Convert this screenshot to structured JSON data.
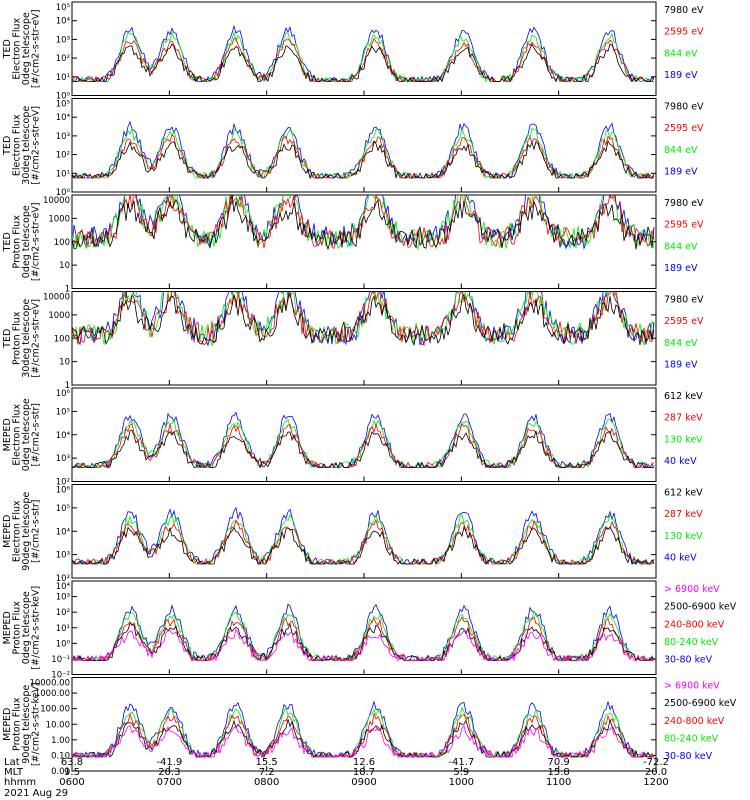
{
  "footer": {
    "row_labels": [
      "Lat",
      "MLT",
      "hhmm"
    ],
    "columns": [
      {
        "lat": "63.8",
        "mlt": "9.5",
        "hhmm": "0600"
      },
      {
        "lat": "-41.9",
        "mlt": "20.3",
        "hhmm": "0700"
      },
      {
        "lat": "15.5",
        "mlt": "7.2",
        "hhmm": "0800"
      },
      {
        "lat": "12.6",
        "mlt": "18.7",
        "hhmm": "0900"
      },
      {
        "lat": "-41.7",
        "mlt": "5.9",
        "hhmm": "1000"
      },
      {
        "lat": "70.9",
        "mlt": "15.8",
        "hhmm": "1100"
      },
      {
        "lat": "-72.2",
        "mlt": "20.0",
        "hhmm": "1200"
      }
    ],
    "date": "2021 Aug 29"
  },
  "colors": {
    "black": "#000000",
    "red": "#ff0000",
    "green": "#00ee00",
    "blue": "#0000ff",
    "magenta": "#ff00ff"
  },
  "chart_data": [
    {
      "type": "line",
      "ylabel": [
        "TED",
        "Electron Flux",
        "0deg telescope",
        "[#/cm2-s-str-eV]"
      ],
      "yscale": "log",
      "yticks": [
        "10⁰",
        "10¹",
        "10²",
        "10³",
        "10⁴",
        "10⁵"
      ],
      "ylim_exp": [
        0,
        5
      ],
      "legend": [
        {
          "label": "7980 eV",
          "color": "#000000"
        },
        {
          "label": "2595 eV",
          "color": "#ff0000"
        },
        {
          "label": "844 eV",
          "color": "#00ee00"
        },
        {
          "label": "189 eV",
          "color": "#0000ff"
        }
      ]
    },
    {
      "type": "line",
      "ylabel": [
        "TED",
        "Electron Flux",
        "30deg telescope",
        "[#/cm2-s-str-eV]"
      ],
      "yscale": "log",
      "yticks": [
        "10⁰",
        "10¹",
        "10²",
        "10³",
        "10⁴",
        "10⁵"
      ],
      "ylim_exp": [
        0,
        5
      ],
      "legend": [
        {
          "label": "7980 eV",
          "color": "#000000"
        },
        {
          "label": "2595 eV",
          "color": "#ff0000"
        },
        {
          "label": "844 eV",
          "color": "#00ee00"
        },
        {
          "label": "189 eV",
          "color": "#0000ff"
        }
      ]
    },
    {
      "type": "line",
      "ylabel": [
        "TED",
        "Proton Flux",
        "0deg telescope",
        "[#/cm2-s-str-eV]"
      ],
      "yscale": "log",
      "yticks": [
        "1",
        "10",
        "100",
        "1000",
        "10000"
      ],
      "ylim_exp": [
        0,
        4
      ],
      "legend": [
        {
          "label": "7980 eV",
          "color": "#000000"
        },
        {
          "label": "2595 eV",
          "color": "#ff0000"
        },
        {
          "label": "844 eV",
          "color": "#00ee00"
        },
        {
          "label": "189 eV",
          "color": "#0000ff"
        }
      ]
    },
    {
      "type": "line",
      "ylabel": [
        "TED",
        "Proton Flux",
        "30deg telescope",
        "[#/cm2-s-str-eV]"
      ],
      "yscale": "log",
      "yticks": [
        "1",
        "10",
        "100",
        "1000",
        "10000"
      ],
      "ylim_exp": [
        0,
        4
      ],
      "legend": [
        {
          "label": "7980 eV",
          "color": "#000000"
        },
        {
          "label": "2595 eV",
          "color": "#ff0000"
        },
        {
          "label": "844 eV",
          "color": "#00ee00"
        },
        {
          "label": "189 eV",
          "color": "#0000ff"
        }
      ]
    },
    {
      "type": "line",
      "ylabel": [
        "MEPED",
        "Electron Flux",
        "0deg telescope",
        "[#/cm2-s-str]"
      ],
      "yscale": "log",
      "yticks": [
        "10²",
        "10³",
        "10⁴",
        "10⁵",
        "10⁶"
      ],
      "ylim_exp": [
        2,
        6
      ],
      "legend": [
        {
          "label": "612 keV",
          "color": "#000000"
        },
        {
          "label": "287 keV",
          "color": "#ff0000"
        },
        {
          "label": "130 keV",
          "color": "#00ee00"
        },
        {
          "label": "40 keV",
          "color": "#0000ff"
        }
      ]
    },
    {
      "type": "line",
      "ylabel": [
        "MEPED",
        "Electron Flux",
        "90deg telescope",
        "[#/cm2-s-str]"
      ],
      "yscale": "log",
      "yticks": [
        "10²",
        "10³",
        "10⁴",
        "10⁵",
        "10⁶"
      ],
      "ylim_exp": [
        2,
        6
      ],
      "legend": [
        {
          "label": "612 keV",
          "color": "#000000"
        },
        {
          "label": "287 keV",
          "color": "#ff0000"
        },
        {
          "label": "130 keV",
          "color": "#00ee00"
        },
        {
          "label": "40 keV",
          "color": "#0000ff"
        }
      ]
    },
    {
      "type": "line",
      "ylabel": [
        "MEPED",
        "Proton Flux",
        "0deg telescope",
        "[#/cm2-s-str-keV]"
      ],
      "yscale": "log",
      "yticks": [
        "10⁻²",
        "10⁻¹",
        "10⁰",
        "10¹",
        "10²",
        "10³",
        "10⁴"
      ],
      "ylim_exp": [
        -2,
        4
      ],
      "legend": [
        {
          "label": "> 6900 keV",
          "color": "#ff00ff"
        },
        {
          "label": "2500-6900 keV",
          "color": "#000000"
        },
        {
          "label": "240-800 keV",
          "color": "#ff0000"
        },
        {
          "label": "80-240 keV",
          "color": "#00ee00"
        },
        {
          "label": "30-80 keV",
          "color": "#0000ff"
        }
      ]
    },
    {
      "type": "line",
      "ylabel": [
        "MEPED",
        "Proton Flux",
        "90deg telescope",
        "[#/cm2-s-str-keV]"
      ],
      "yscale": "log",
      "yticks": [
        "0.01",
        "0.10",
        "1.00",
        "10.00",
        "100.00",
        "1000.00",
        "10000.00"
      ],
      "ylim_exp": [
        -2,
        4
      ],
      "legend": [
        {
          "label": "> 6900 keV",
          "color": "#ff00ff"
        },
        {
          "label": "2500-6900 keV",
          "color": "#000000"
        },
        {
          "label": "240-800 keV",
          "color": "#ff0000"
        },
        {
          "label": "80-240 keV",
          "color": "#00ee00"
        },
        {
          "label": "30-80 keV",
          "color": "#0000ff"
        }
      ]
    }
  ]
}
